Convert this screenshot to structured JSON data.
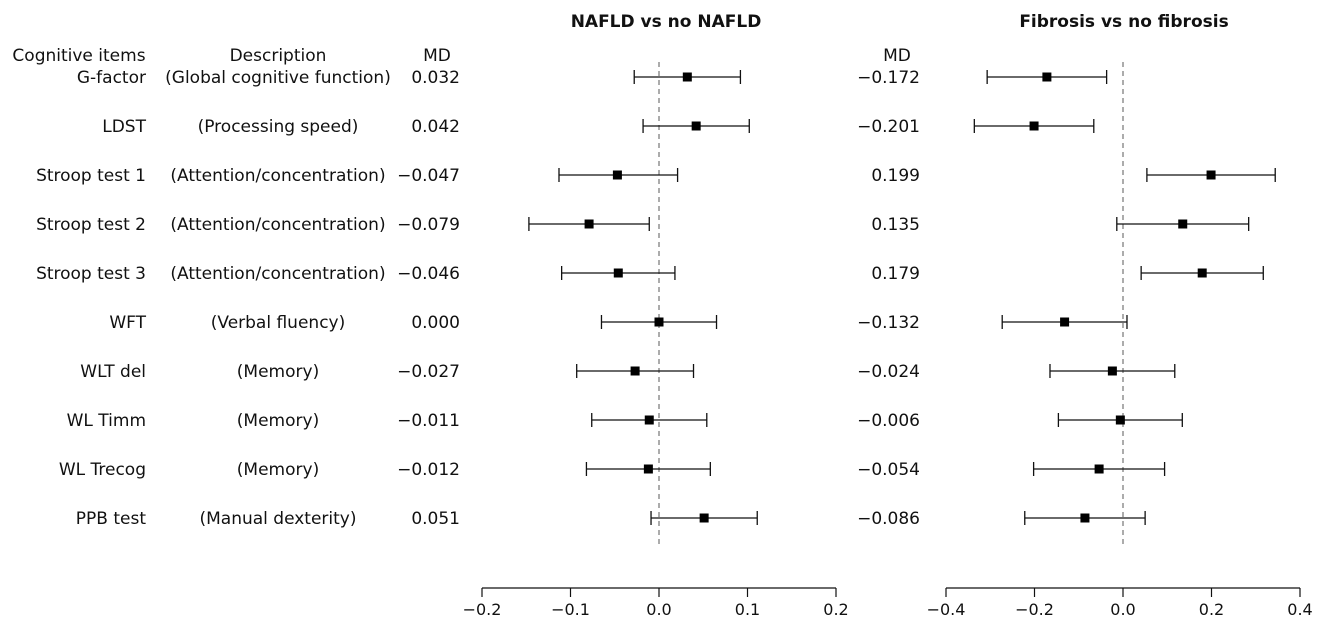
{
  "table": {
    "header_item": "Cognitive items",
    "header_description": "Description",
    "header_md": "MD",
    "rows": [
      {
        "item": "G-factor",
        "description": "(Global cognitive function)"
      },
      {
        "item": "LDST",
        "description": "(Processing speed)"
      },
      {
        "item": "Stroop test 1",
        "description": "(Attention/concentration)"
      },
      {
        "item": "Stroop test 2",
        "description": "(Attention/concentration)"
      },
      {
        "item": "Stroop test 3",
        "description": "(Attention/concentration)"
      },
      {
        "item": "WFT",
        "description": "(Verbal fluency)"
      },
      {
        "item": "WLT del",
        "description": "(Memory)"
      },
      {
        "item": "WL Timm",
        "description": "(Memory)"
      },
      {
        "item": "WL Trecog",
        "description": "(Memory)"
      },
      {
        "item": "PPB test",
        "description": "(Manual dexterity)"
      }
    ]
  },
  "chart_data": [
    {
      "type": "forest",
      "title": "NAFLD vs no NAFLD",
      "md_header": "MD",
      "categories": [
        "G-factor",
        "LDST",
        "Stroop test 1",
        "Stroop test 2",
        "Stroop test 3",
        "WFT",
        "WLT del",
        "WL Timm",
        "WL Trecog",
        "PPB test"
      ],
      "md_labels": [
        "0.032",
        "0.042",
        "−0.047",
        "−0.079",
        "−0.046",
        "0.000",
        "−0.027",
        "−0.011",
        "−0.012",
        "0.051"
      ],
      "values": [
        0.032,
        0.042,
        -0.047,
        -0.079,
        -0.046,
        0.0,
        -0.027,
        -0.011,
        -0.012,
        0.051
      ],
      "ci_lower": [
        -0.028,
        -0.018,
        -0.113,
        -0.147,
        -0.11,
        -0.065,
        -0.093,
        -0.076,
        -0.082,
        -0.009
      ],
      "ci_upper": [
        0.092,
        0.102,
        0.021,
        -0.011,
        0.018,
        0.065,
        0.039,
        0.054,
        0.058,
        0.111
      ],
      "xlim": [
        -0.2,
        0.2
      ],
      "ticks": [
        -0.2,
        -0.1,
        0.0,
        0.1,
        0.2
      ],
      "tick_labels": [
        "−0.2",
        "−0.1",
        "0.0",
        "0.1",
        "0.2"
      ],
      "reference_line": 0
    },
    {
      "type": "forest",
      "title": "Fibrosis vs no fibrosis",
      "md_header": "MD",
      "categories": [
        "G-factor",
        "LDST",
        "Stroop test 1",
        "Stroop test 2",
        "Stroop test 3",
        "WFT",
        "WLT del",
        "WL Timm",
        "WL Trecog",
        "PPB test"
      ],
      "md_labels": [
        "−0.172",
        "−0.201",
        "0.199",
        "0.135",
        "0.179",
        "−0.132",
        "−0.024",
        "−0.006",
        "−0.054",
        "−0.086"
      ],
      "values": [
        -0.172,
        -0.201,
        0.199,
        0.135,
        0.179,
        -0.132,
        -0.024,
        -0.006,
        -0.054,
        -0.086
      ],
      "ci_lower": [
        -0.307,
        -0.336,
        0.054,
        -0.014,
        0.041,
        -0.273,
        -0.165,
        -0.146,
        -0.202,
        -0.222
      ],
      "ci_upper": [
        -0.037,
        -0.066,
        0.344,
        0.284,
        0.317,
        0.009,
        0.117,
        0.134,
        0.094,
        0.05
      ],
      "xlim": [
        -0.4,
        0.4
      ],
      "ticks": [
        -0.4,
        -0.2,
        0.0,
        0.2,
        0.4
      ],
      "tick_labels": [
        "−0.4",
        "−0.2",
        "0.0",
        "0.2",
        "0.4"
      ],
      "reference_line": 0
    }
  ]
}
